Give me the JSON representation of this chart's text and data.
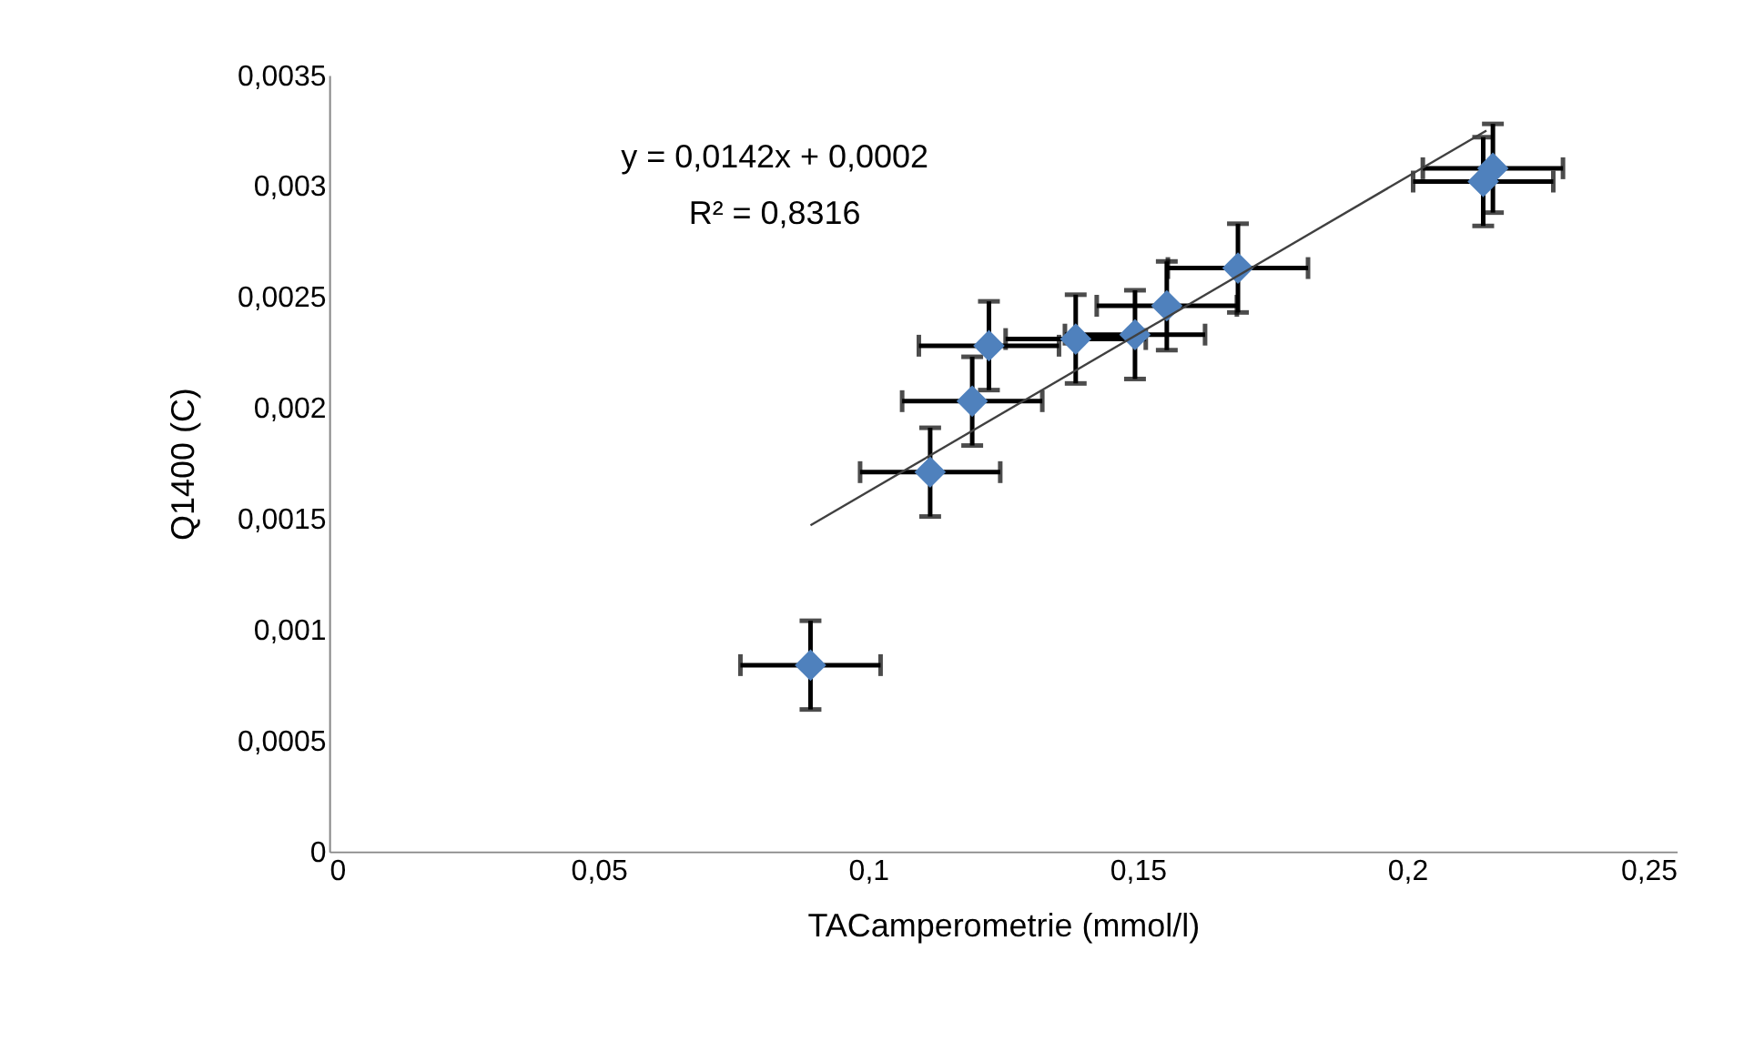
{
  "chart_data": {
    "type": "scatter",
    "xlabel": "TACamperometrie (mmol/l)",
    "ylabel": "Q1400 (C)",
    "annotations": [
      "y = 0,0142x + 0,0002",
      "R² = 0,8316"
    ],
    "xlim": [
      0,
      0.25
    ],
    "ylim": [
      0,
      0.0035
    ],
    "xticks": [
      0,
      {
        "value": 0.05,
        "label": "0,05"
      },
      {
        "value": 0.1,
        "label": "0,1"
      },
      {
        "value": 0.15,
        "label": "0,15"
      },
      {
        "value": 0.2,
        "label": "0,2"
      },
      {
        "value": 0.25,
        "label": "0,25"
      }
    ],
    "yticks": [
      0,
      {
        "value": 0.0005,
        "label": "0,0005"
      },
      {
        "value": 0.001,
        "label": "0,001"
      },
      {
        "value": 0.0015,
        "label": "0,0015"
      },
      {
        "value": 0.002,
        "label": "0,002"
      },
      {
        "value": 0.0025,
        "label": "0,0025"
      },
      {
        "value": 0.003,
        "label": "0,003"
      },
      {
        "value": 0.0035,
        "label": "0,0035"
      }
    ],
    "grid": false,
    "marker": "diamond",
    "series": [
      {
        "color": "#4f81bd",
        "x": [
          0.0893,
          0.1115,
          0.1193,
          0.1224,
          0.1385,
          0.1495,
          0.1554,
          0.1686,
          0.2141,
          0.2159
        ],
        "values": [
          0.00084,
          0.00171,
          0.00203,
          0.00228,
          0.00231,
          0.00233,
          0.00246,
          0.00263,
          0.00302,
          0.00308
        ],
        "errors": [
          0.0002,
          0.0002,
          0.0002,
          0.0002,
          0.0002,
          0.0002,
          0.0002,
          0.0002,
          0.0002,
          0.0002
        ],
        "xerrors": [
          0.013,
          0.013,
          0.013,
          0.013,
          0.013,
          0.013,
          0.013,
          0.013,
          0.013,
          0.013
        ]
      },
      {
        "type": "line",
        "marker": "none",
        "color": "#404040",
        "x": [
          0.0893,
          0.2147
        ],
        "values": [
          0.00147,
          0.00325
        ]
      }
    ]
  }
}
